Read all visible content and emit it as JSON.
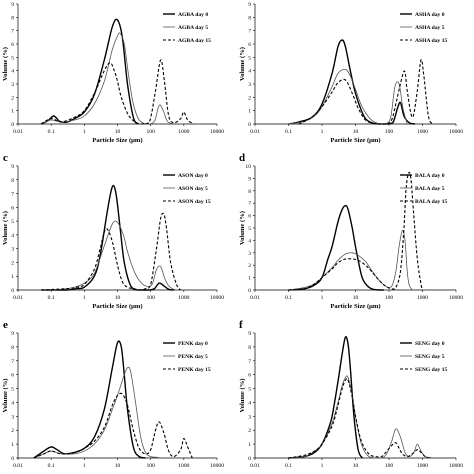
{
  "colors": {
    "line": "#000000",
    "axis": "#000000",
    "background": "#ffffff"
  },
  "chart_data": [
    {
      "type": "line",
      "panel_label": "",
      "xscale": "log",
      "xlim": [
        0.01,
        10000
      ],
      "ylim": [
        0,
        9
      ],
      "xticks": [
        "0.01",
        "0.1",
        "1",
        "10",
        "100",
        "1000",
        "10000"
      ],
      "yticks": [
        "0",
        "1",
        "2",
        "3",
        "4",
        "5",
        "6",
        "7",
        "8",
        "9"
      ],
      "xlabel": "Particle Size (μm)",
      "ylabel": "Volume (%)",
      "legend_position": "top-right",
      "series": [
        {
          "name": "AGBA day 0",
          "style": "solid",
          "x": [
            0.05,
            0.08,
            0.12,
            0.18,
            0.3,
            0.5,
            1,
            2,
            4,
            7,
            10,
            14,
            20,
            30,
            40
          ],
          "y": [
            0,
            0.25,
            0.6,
            0.2,
            0.15,
            0.4,
            0.9,
            2.2,
            4.8,
            7.3,
            7.8,
            6.5,
            3,
            0.5,
            0
          ]
        },
        {
          "name": "AGBA day 5",
          "style": "solid-gray",
          "x": [
            0.05,
            0.1,
            0.2,
            0.5,
            1,
            2,
            4,
            7,
            10,
            12,
            16,
            22,
            30,
            45,
            80,
            130,
            180,
            240,
            320,
            500
          ],
          "y": [
            0,
            0.3,
            0.15,
            0.3,
            0.6,
            1.5,
            3.2,
            5.6,
            6.6,
            6.8,
            6,
            3.5,
            1.5,
            0.3,
            0,
            0.2,
            1.4,
            1,
            0.2,
            0
          ]
        },
        {
          "name": "AGBA day 15",
          "style": "dashed",
          "x": [
            0.05,
            0.1,
            0.2,
            0.5,
            1,
            2,
            4,
            6,
            8,
            10,
            13,
            20,
            30,
            50,
            90,
            140,
            200,
            260,
            350,
            500,
            800,
            1000,
            1300,
            2000
          ],
          "y": [
            0,
            0.4,
            0.15,
            0.5,
            1,
            2.3,
            4,
            4.6,
            4,
            3.2,
            2,
            0.8,
            0.25,
            0,
            0.1,
            2.5,
            4.8,
            3.2,
            0.6,
            0.1,
            0.4,
            0.9,
            0.3,
            0
          ]
        }
      ]
    },
    {
      "type": "line",
      "panel_label": "",
      "xscale": "log",
      "xlim": [
        0.01,
        10000
      ],
      "ylim": [
        0,
        9
      ],
      "xticks": [
        "0.01",
        "0.1",
        "1",
        "10",
        "100",
        "1000",
        "10000"
      ],
      "yticks": [
        "0",
        "1",
        "2",
        "3",
        "4",
        "5",
        "6",
        "7",
        "8",
        "9"
      ],
      "xlabel": "Particle Size (μm)",
      "ylabel": "Volume (%)",
      "legend_position": "top-right",
      "series": [
        {
          "name": "ASHA day 0",
          "style": "solid",
          "x": [
            0.1,
            0.2,
            0.5,
            1,
            2,
            3,
            4,
            5,
            7,
            10,
            15,
            20,
            30,
            50,
            80,
            130,
            180,
            220,
            280,
            400,
            600
          ],
          "y": [
            0,
            0.15,
            0.5,
            1.5,
            3.8,
            5.8,
            6.3,
            5.8,
            4,
            2.3,
            1,
            0.4,
            0.1,
            0,
            0,
            0.1,
            1.2,
            1.6,
            0.6,
            0.1,
            0
          ]
        },
        {
          "name": "ASHA day 5",
          "style": "solid-gray",
          "x": [
            0.1,
            0.3,
            0.6,
            1,
            2,
            3,
            5,
            7,
            10,
            15,
            25,
            40,
            70,
            110,
            150,
            200,
            260,
            350
          ],
          "y": [
            0,
            0.2,
            0.6,
            1.3,
            2.8,
            3.8,
            4.1,
            3.6,
            2.6,
            1.4,
            0.5,
            0.1,
            0,
            0.4,
            2.8,
            3,
            1.2,
            0
          ]
        },
        {
          "name": "ASHA day 15",
          "style": "dashed",
          "x": [
            0.2,
            0.5,
            1,
            2,
            3,
            5,
            8,
            12,
            20,
            40,
            80,
            120,
            170,
            250,
            300,
            350,
            500,
            700,
            900,
            1100,
            1500,
            2000
          ],
          "y": [
            0,
            0.5,
            1.3,
            2.4,
            3.1,
            3.3,
            2.3,
            1.2,
            0.3,
            0,
            0,
            0.3,
            1.8,
            3.6,
            3.9,
            2.5,
            0.5,
            2.5,
            4.8,
            3.6,
            0.6,
            0
          ]
        }
      ]
    },
    {
      "type": "line",
      "panel_label": "c",
      "xscale": "log",
      "xlim": [
        0.01,
        10000
      ],
      "ylim": [
        0,
        9
      ],
      "xticks": [
        "0.01",
        "0.1",
        "1",
        "10",
        "100",
        "1000",
        "10000"
      ],
      "yticks": [
        "0",
        "1",
        "2",
        "3",
        "4",
        "5",
        "6",
        "7",
        "8",
        "9"
      ],
      "xlabel": "Particle Size (μm)",
      "ylabel": "Volume (%)",
      "legend_position": "top-right",
      "series": [
        {
          "name": "ASON day 0",
          "style": "solid",
          "x": [
            0.05,
            0.3,
            0.6,
            1,
            2,
            3,
            5,
            7,
            9,
            12,
            16,
            25,
            40,
            60,
            90,
            130,
            180,
            250,
            350,
            500
          ],
          "y": [
            0,
            0,
            0.1,
            0.2,
            1,
            2.5,
            5.8,
            7.5,
            7,
            4.5,
            2,
            0.3,
            0,
            0,
            0,
            0.1,
            0.5,
            0.3,
            0.05,
            0
          ]
        },
        {
          "name": "ASON day 5",
          "style": "solid-gray",
          "x": [
            0.05,
            0.2,
            0.5,
            1,
            2,
            4,
            7,
            10,
            15,
            20,
            30,
            45,
            70,
            110,
            150,
            200,
            260,
            350,
            500,
            700
          ],
          "y": [
            0,
            0.05,
            0.2,
            0.5,
            1.2,
            3.2,
            4.8,
            4.9,
            4,
            2.8,
            1.5,
            0.7,
            0.3,
            0.4,
            1.5,
            1.7,
            0.9,
            0.3,
            0.05,
            0
          ]
        },
        {
          "name": "ASON day 15",
          "style": "dashed",
          "x": [
            0.05,
            0.3,
            0.6,
            1,
            2,
            3,
            4,
            5,
            7,
            10,
            14,
            20,
            30,
            50,
            70,
            100,
            150,
            200,
            250,
            300,
            400,
            600,
            800
          ],
          "y": [
            0,
            0.1,
            0.2,
            0.4,
            1.5,
            3,
            4.2,
            4.4,
            3.5,
            1.8,
            0.6,
            0.2,
            0.1,
            0,
            0.1,
            0.4,
            3,
            5.2,
            5.5,
            4.5,
            2,
            0.4,
            0
          ]
        }
      ]
    },
    {
      "type": "line",
      "panel_label": "d",
      "xscale": "log",
      "xlim": [
        0.01,
        10000
      ],
      "ylim": [
        0,
        10
      ],
      "xticks": [
        "0.01",
        "0.1",
        "1",
        "10",
        "100",
        "1000",
        "10000"
      ],
      "yticks": [
        "0",
        "1",
        "2",
        "3",
        "4",
        "5",
        "6",
        "7",
        "8",
        "9",
        "10"
      ],
      "xlabel": "Particle Size (μm)",
      "ylabel": "Volume (%)",
      "legend_position": "top-right",
      "series": [
        {
          "name": "BALA day 0",
          "style": "solid",
          "x": [
            0.1,
            0.3,
            0.6,
            1,
            1.5,
            2,
            3,
            4,
            5,
            6,
            8,
            10,
            15,
            20,
            30,
            50,
            70
          ],
          "y": [
            0,
            0.1,
            0.4,
            1,
            2.5,
            3.5,
            5.5,
            6.5,
            6.8,
            6.5,
            5,
            3.5,
            1.2,
            0.5,
            0.1,
            0,
            0
          ]
        },
        {
          "name": "BALA day 5",
          "style": "solid-gray",
          "x": [
            0.1,
            0.3,
            0.6,
            1,
            2,
            3,
            5,
            8,
            12,
            20,
            30,
            50,
            80,
            120,
            160,
            200,
            250,
            300,
            350,
            400,
            500
          ],
          "y": [
            0,
            0.2,
            0.5,
            1,
            1.8,
            2.4,
            2.9,
            3,
            2.8,
            2.3,
            1.6,
            0.8,
            0.3,
            0.3,
            1.5,
            3.5,
            4.8,
            4,
            1.5,
            0.4,
            0
          ]
        },
        {
          "name": "BALA day 15",
          "style": "dashed",
          "x": [
            0.1,
            0.3,
            0.6,
            1,
            2,
            3,
            5,
            8,
            12,
            20,
            30,
            50,
            80,
            120,
            160,
            220,
            280,
            320,
            380,
            450,
            550,
            700,
            900,
            1000
          ],
          "y": [
            0,
            0.1,
            0.5,
            1,
            1.7,
            2.2,
            2.5,
            2.5,
            2.4,
            2,
            1.5,
            0.8,
            0.3,
            0.1,
            0.2,
            1.5,
            5,
            8,
            9.4,
            9,
            6,
            2.5,
            0.5,
            0
          ]
        }
      ]
    },
    {
      "type": "line",
      "panel_label": "e",
      "xscale": "log",
      "xlim": [
        0.01,
        10000
      ],
      "ylim": [
        0,
        9
      ],
      "xticks": [
        "0.01",
        "0.1",
        "1",
        "10",
        "100",
        "1000",
        "10000"
      ],
      "yticks": [
        "0",
        "1",
        "2",
        "3",
        "4",
        "5",
        "6",
        "7",
        "8",
        "9"
      ],
      "xlabel": "",
      "ylabel": "Volume (%)",
      "legend_position": "top-right",
      "series": [
        {
          "name": "PENK day 0",
          "style": "solid",
          "x": [
            0.03,
            0.06,
            0.1,
            0.15,
            0.25,
            0.5,
            1,
            2,
            4,
            7,
            10,
            13,
            16,
            20,
            30,
            45,
            70
          ],
          "y": [
            0,
            0.5,
            0.8,
            0.6,
            0.3,
            0.4,
            0.7,
            1.5,
            3.5,
            6.5,
            8.3,
            8,
            6,
            3.5,
            0.8,
            0.1,
            0
          ]
        },
        {
          "name": "PENK day 5",
          "style": "solid-gray",
          "x": [
            0.03,
            0.06,
            0.1,
            0.2,
            0.5,
            1,
            2,
            4,
            7,
            10,
            15,
            20,
            25,
            35,
            50,
            70,
            100,
            150,
            200
          ],
          "y": [
            0,
            0.3,
            0.5,
            0.3,
            0.3,
            0.5,
            1,
            2,
            3.5,
            4.5,
            5.8,
            6.5,
            6.2,
            4,
            1.5,
            0.4,
            0.1,
            0.05,
            0
          ]
        },
        {
          "name": "PENK day 15",
          "style": "dashed",
          "x": [
            0.03,
            0.06,
            0.1,
            0.2,
            0.5,
            1,
            2,
            4,
            7,
            10,
            14,
            20,
            30,
            45,
            70,
            100,
            140,
            180,
            250,
            350,
            500,
            800,
            1000,
            1300,
            1800
          ],
          "y": [
            0,
            0.3,
            0.5,
            0.3,
            0.4,
            0.7,
            1.2,
            2.2,
            3.8,
            4.5,
            4.6,
            3.8,
            2,
            0.7,
            0.3,
            0.6,
            2,
            2.6,
            1.8,
            0.5,
            0.1,
            0.6,
            1.4,
            0.8,
            0
          ]
        }
      ]
    },
    {
      "type": "line",
      "panel_label": "f",
      "xscale": "log",
      "xlim": [
        0.01,
        10000
      ],
      "ylim": [
        0,
        9
      ],
      "xticks": [
        "0.01",
        "0.1",
        "1",
        "10",
        "100",
        "1000",
        "10000"
      ],
      "yticks": [
        "0",
        "1",
        "2",
        "3",
        "4",
        "5",
        "6",
        "7",
        "8",
        "9"
      ],
      "xlabel": "",
      "ylabel": "Volume (%)",
      "legend_position": "top-right",
      "series": [
        {
          "name": "SENG day 0",
          "style": "solid",
          "x": [
            0.1,
            0.3,
            0.6,
            1,
            1.5,
            2,
            3,
            4,
            5,
            6,
            7,
            9,
            12,
            16
          ],
          "y": [
            0,
            0.1,
            0.4,
            1,
            2,
            3,
            5.5,
            7.5,
            8.7,
            8.2,
            6.5,
            3,
            0.6,
            0
          ]
        },
        {
          "name": "SENG day 5",
          "style": "solid-gray",
          "x": [
            0.1,
            0.3,
            0.6,
            1,
            2,
            3,
            4,
            5,
            6,
            8,
            10,
            15,
            25,
            50,
            80,
            120,
            160,
            220,
            300,
            400,
            550,
            700,
            900,
            1200,
            1600,
            2000
          ],
          "y": [
            0,
            0.1,
            0.5,
            1,
            2.5,
            4,
            5.2,
            5.8,
            5.8,
            4.5,
            3,
            1,
            0.1,
            0,
            0.2,
            1.2,
            2.1,
            1.5,
            0.4,
            0.1,
            0.4,
            1,
            0.5,
            0.1,
            0.05,
            0
          ]
        },
        {
          "name": "SENG day 15",
          "style": "dashed",
          "x": [
            0.1,
            0.3,
            0.6,
            1,
            2,
            3,
            4,
            5,
            6,
            8,
            10,
            15,
            25,
            40,
            60,
            80,
            120,
            160,
            200,
            250,
            350,
            500,
            700,
            900,
            1200,
            1500
          ],
          "y": [
            0,
            0.2,
            0.5,
            1,
            2.3,
            3.8,
            5,
            5.6,
            5.6,
            4.4,
            3,
            1.2,
            0.3,
            0.1,
            0.1,
            0.4,
            0.9,
            1.1,
            0.7,
            0.3,
            0.1,
            0.3,
            0.6,
            0.4,
            0.1,
            0
          ]
        }
      ]
    }
  ]
}
